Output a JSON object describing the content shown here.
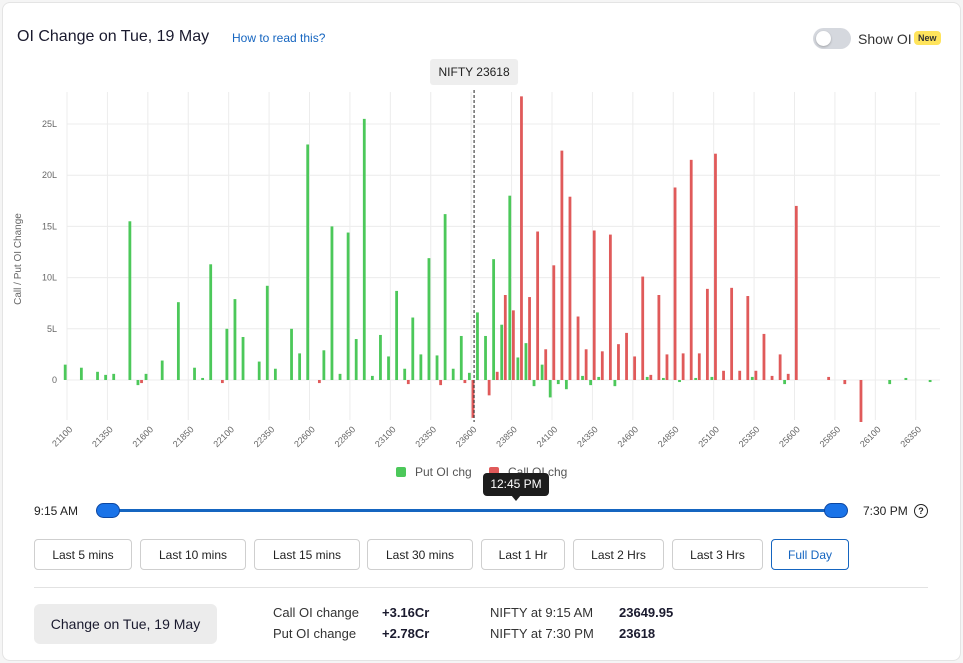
{
  "header": {
    "title": "OI Change on Tue, 19 May",
    "how_to_link": "How to read this?",
    "show_oi_label": "Show OI",
    "new_badge": "New",
    "show_oi_enabled": false
  },
  "colors": {
    "put": "#4cc85a",
    "call": "#e05a5a",
    "accent": "#1565c0"
  },
  "chart_data": {
    "type": "bar",
    "spot_label": "NIFTY 23618",
    "spot_strike": 23618,
    "ylabel": "Call / Put OI Change",
    "ylim": [
      -4,
      28
    ],
    "yticks": [
      0,
      5,
      10,
      15,
      20,
      25
    ],
    "ytick_labels": [
      "0",
      "5L",
      "10L",
      "15L",
      "20L",
      "25L"
    ],
    "xlim": [
      21100,
      26500
    ],
    "xtick_labels": [
      "21100",
      "21350",
      "21600",
      "21850",
      "22100",
      "22350",
      "22600",
      "22850",
      "23100",
      "23350",
      "23600",
      "23850",
      "24100",
      "24350",
      "24600",
      "24850",
      "25100",
      "25350",
      "25600",
      "25850",
      "26100",
      "26350"
    ],
    "legend": [
      "Put OI chg",
      "Call OI chg"
    ],
    "grid": true,
    "series": [
      {
        "name": "Put OI chg",
        "color": "#4cc85a",
        "points": [
          [
            21100,
            1.5
          ],
          [
            21200,
            1.2
          ],
          [
            21300,
            0.8
          ],
          [
            21350,
            0.5
          ],
          [
            21400,
            0.6
          ],
          [
            21500,
            15.5
          ],
          [
            21550,
            -0.5
          ],
          [
            21600,
            0.6
          ],
          [
            21700,
            1.9
          ],
          [
            21800,
            7.6
          ],
          [
            21900,
            1.2
          ],
          [
            21950,
            0.2
          ],
          [
            22000,
            11.3
          ],
          [
            22100,
            5.0
          ],
          [
            22150,
            7.9
          ],
          [
            22200,
            4.2
          ],
          [
            22300,
            1.8
          ],
          [
            22350,
            9.2
          ],
          [
            22400,
            1.1
          ],
          [
            22500,
            5.0
          ],
          [
            22550,
            2.6
          ],
          [
            22600,
            23.0
          ],
          [
            22700,
            2.9
          ],
          [
            22750,
            15.0
          ],
          [
            22800,
            0.6
          ],
          [
            22850,
            14.4
          ],
          [
            22900,
            4.0
          ],
          [
            22950,
            25.5
          ],
          [
            23000,
            0.4
          ],
          [
            23050,
            4.4
          ],
          [
            23100,
            2.3
          ],
          [
            23150,
            8.7
          ],
          [
            23200,
            1.1
          ],
          [
            23250,
            6.1
          ],
          [
            23300,
            2.5
          ],
          [
            23350,
            11.9
          ],
          [
            23400,
            2.4
          ],
          [
            23450,
            16.2
          ],
          [
            23500,
            1.1
          ],
          [
            23550,
            4.3
          ],
          [
            23600,
            0.7
          ],
          [
            23650,
            6.6
          ],
          [
            23700,
            4.3
          ],
          [
            23750,
            11.8
          ],
          [
            23800,
            5.4
          ],
          [
            23850,
            18.0
          ],
          [
            23900,
            2.2
          ],
          [
            23950,
            3.6
          ],
          [
            24000,
            -0.6
          ],
          [
            24050,
            1.5
          ],
          [
            24100,
            -1.7
          ],
          [
            24150,
            -0.4
          ],
          [
            24200,
            -0.9
          ],
          [
            24300,
            0.4
          ],
          [
            24350,
            -0.5
          ],
          [
            24400,
            0.3
          ],
          [
            24500,
            -0.6
          ],
          [
            24700,
            0.3
          ],
          [
            24800,
            0.2
          ],
          [
            24900,
            -0.2
          ],
          [
            25000,
            0.2
          ],
          [
            25100,
            0.3
          ],
          [
            25350,
            0.3
          ],
          [
            25550,
            -0.4
          ],
          [
            26200,
            -0.4
          ],
          [
            26300,
            0.2
          ],
          [
            26450,
            -0.2
          ]
        ]
      },
      {
        "name": "Call OI chg",
        "color": "#e05a5a",
        "points": [
          [
            21550,
            -0.3
          ],
          [
            22050,
            -0.3
          ],
          [
            22650,
            -0.3
          ],
          [
            23200,
            -0.4
          ],
          [
            23400,
            -0.5
          ],
          [
            23550,
            -0.3
          ],
          [
            23600,
            -3.7
          ],
          [
            23700,
            -1.5
          ],
          [
            23750,
            0.8
          ],
          [
            23800,
            8.3
          ],
          [
            23850,
            6.8
          ],
          [
            23900,
            27.7
          ],
          [
            23950,
            8.1
          ],
          [
            24000,
            14.5
          ],
          [
            24050,
            3.0
          ],
          [
            24100,
            11.2
          ],
          [
            24150,
            22.4
          ],
          [
            24200,
            17.9
          ],
          [
            24250,
            6.2
          ],
          [
            24300,
            3.0
          ],
          [
            24350,
            14.6
          ],
          [
            24400,
            2.8
          ],
          [
            24450,
            14.2
          ],
          [
            24500,
            3.5
          ],
          [
            24550,
            4.6
          ],
          [
            24600,
            2.3
          ],
          [
            24650,
            10.1
          ],
          [
            24700,
            0.5
          ],
          [
            24750,
            8.3
          ],
          [
            24800,
            2.5
          ],
          [
            24850,
            18.8
          ],
          [
            24900,
            2.6
          ],
          [
            24950,
            21.5
          ],
          [
            25000,
            2.6
          ],
          [
            25050,
            8.9
          ],
          [
            25100,
            22.1
          ],
          [
            25150,
            0.9
          ],
          [
            25200,
            9.0
          ],
          [
            25250,
            0.9
          ],
          [
            25300,
            8.2
          ],
          [
            25350,
            0.9
          ],
          [
            25400,
            4.5
          ],
          [
            25450,
            0.4
          ],
          [
            25500,
            2.5
          ],
          [
            25550,
            0.6
          ],
          [
            25600,
            17.0
          ],
          [
            25800,
            0.3
          ],
          [
            25900,
            -0.4
          ],
          [
            26000,
            -4.1
          ]
        ]
      }
    ]
  },
  "time_slider": {
    "start": "9:15 AM",
    "end": "7:30 PM",
    "current_tooltip": "12:45 PM",
    "help_icon": "?"
  },
  "range_buttons": [
    "Last 5 mins",
    "Last 10 mins",
    "Last 15 mins",
    "Last 30 mins",
    "Last 1 Hr",
    "Last 2 Hrs",
    "Last 3 Hrs",
    "Full Day"
  ],
  "active_range": "Full Day",
  "summary": {
    "button_label": "Change on Tue, 19 May",
    "call_oi_label": "Call OI change",
    "call_oi_value": "+3.16Cr",
    "put_oi_label": "Put OI change",
    "put_oi_value": "+2.78Cr",
    "nifty_open_label": "NIFTY at 9:15 AM",
    "nifty_open_value": "23649.95",
    "nifty_close_label": "NIFTY at 7:30 PM",
    "nifty_close_value": "23618"
  }
}
